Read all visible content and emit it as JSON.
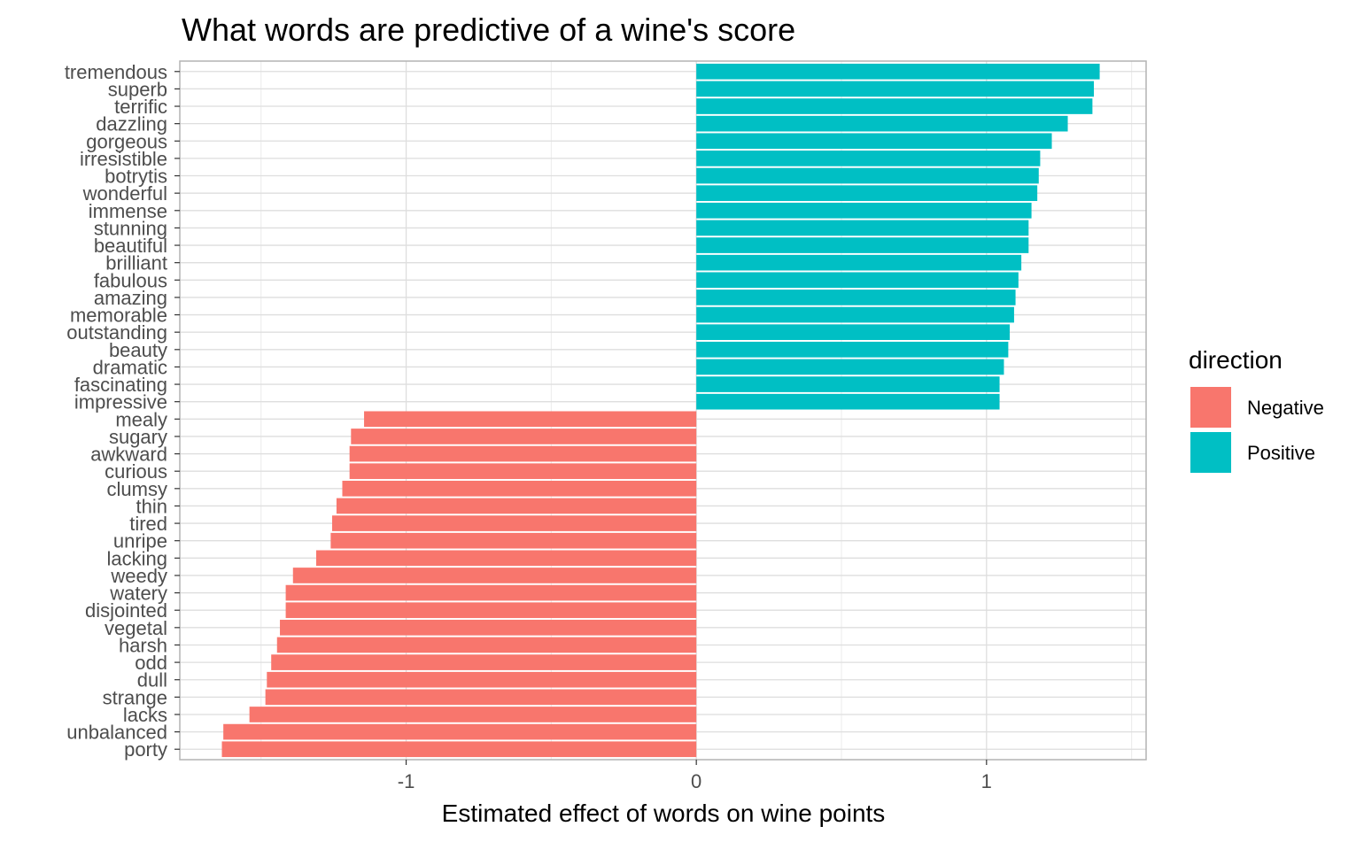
{
  "chart_data": {
    "type": "bar",
    "orientation": "horizontal",
    "title": "What words are predictive of a wine's score",
    "xlabel": "Estimated effect of words on wine points",
    "ylabel": "",
    "xlim": [
      -1.78,
      1.55
    ],
    "xticks": [
      -1,
      0,
      1
    ],
    "xtick_labels": [
      "-1",
      "0",
      "1"
    ],
    "grid": true,
    "legend": {
      "title": "direction",
      "position": "right",
      "entries": [
        {
          "label": "Negative",
          "color": "#F8766D"
        },
        {
          "label": "Positive",
          "color": "#00BFC4"
        }
      ]
    },
    "categories": [
      "tremendous",
      "superb",
      "terrific",
      "dazzling",
      "gorgeous",
      "irresistible",
      "botrytis",
      "wonderful",
      "immense",
      "stunning",
      "beautiful",
      "brilliant",
      "fabulous",
      "amazing",
      "memorable",
      "outstanding",
      "beauty",
      "dramatic",
      "fascinating",
      "impressive",
      "mealy",
      "sugary",
      "awkward",
      "curious",
      "clumsy",
      "thin",
      "tired",
      "unripe",
      "lacking",
      "weedy",
      "watery",
      "disjointed",
      "vegetal",
      "harsh",
      "odd",
      "dull",
      "strange",
      "lacks",
      "unbalanced",
      "porty"
    ],
    "values": [
      1.39,
      1.37,
      1.365,
      1.28,
      1.225,
      1.185,
      1.18,
      1.175,
      1.155,
      1.145,
      1.145,
      1.12,
      1.11,
      1.1,
      1.095,
      1.08,
      1.075,
      1.06,
      1.045,
      1.045,
      -1.145,
      -1.19,
      -1.195,
      -1.195,
      -1.22,
      -1.24,
      -1.255,
      -1.26,
      -1.31,
      -1.39,
      -1.415,
      -1.415,
      -1.435,
      -1.445,
      -1.465,
      -1.48,
      -1.485,
      -1.54,
      -1.63,
      -1.635
    ],
    "directions": [
      "Positive",
      "Positive",
      "Positive",
      "Positive",
      "Positive",
      "Positive",
      "Positive",
      "Positive",
      "Positive",
      "Positive",
      "Positive",
      "Positive",
      "Positive",
      "Positive",
      "Positive",
      "Positive",
      "Positive",
      "Positive",
      "Positive",
      "Positive",
      "Negative",
      "Negative",
      "Negative",
      "Negative",
      "Negative",
      "Negative",
      "Negative",
      "Negative",
      "Negative",
      "Negative",
      "Negative",
      "Negative",
      "Negative",
      "Negative",
      "Negative",
      "Negative",
      "Negative",
      "Negative",
      "Negative",
      "Negative"
    ]
  }
}
